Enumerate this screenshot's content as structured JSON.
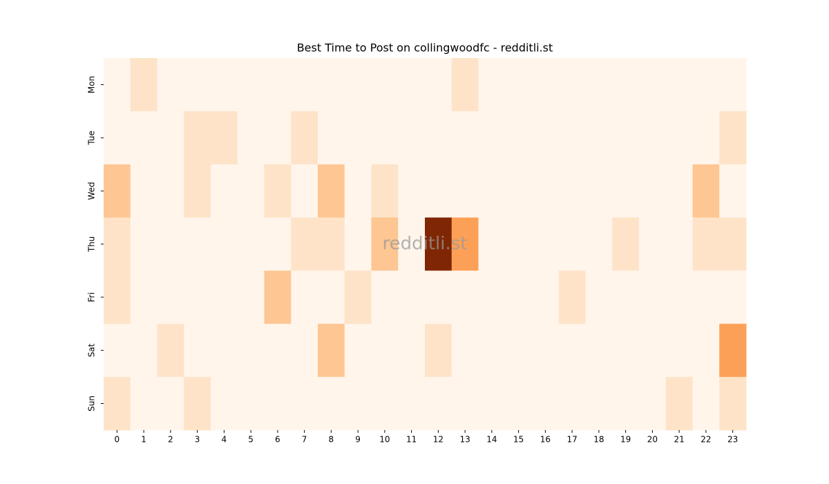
{
  "chart_data": {
    "type": "heatmap",
    "title": "Best Time to Post on collingwoodfc - redditli.st",
    "watermark": "redditli.st",
    "x": [
      0,
      1,
      2,
      3,
      4,
      5,
      6,
      7,
      8,
      9,
      10,
      11,
      12,
      13,
      14,
      15,
      16,
      17,
      18,
      19,
      20,
      21,
      22,
      23
    ],
    "categories": [
      "Mon",
      "Tue",
      "Wed",
      "Thu",
      "Fri",
      "Sat",
      "Sun"
    ],
    "values": [
      [
        0,
        1,
        0,
        0,
        0,
        0,
        0,
        0,
        0,
        0,
        0,
        0,
        0,
        1,
        0,
        0,
        0,
        0,
        0,
        0,
        0,
        0,
        0,
        0
      ],
      [
        0,
        0,
        0,
        1,
        1,
        0,
        0,
        1,
        0,
        0,
        0,
        0,
        0,
        0,
        0,
        0,
        0,
        0,
        0,
        0,
        0,
        0,
        0,
        1
      ],
      [
        2,
        0,
        0,
        1,
        0,
        0,
        1,
        0,
        2,
        0,
        1,
        0,
        0,
        0,
        0,
        0,
        0,
        0,
        0,
        0,
        0,
        0,
        2,
        0
      ],
      [
        1,
        0,
        0,
        0,
        0,
        0,
        0,
        1,
        1,
        0,
        2,
        0,
        7,
        3,
        0,
        0,
        0,
        0,
        0,
        1,
        0,
        0,
        1,
        1
      ],
      [
        1,
        0,
        0,
        0,
        0,
        0,
        2,
        0,
        0,
        1,
        0,
        0,
        0,
        0,
        0,
        0,
        0,
        1,
        0,
        0,
        0,
        0,
        0,
        0
      ],
      [
        0,
        0,
        1,
        0,
        0,
        0,
        0,
        0,
        2,
        0,
        0,
        0,
        1,
        0,
        0,
        0,
        0,
        0,
        0,
        0,
        0,
        0,
        0,
        3
      ],
      [
        1,
        0,
        0,
        1,
        0,
        0,
        0,
        0,
        0,
        0,
        0,
        0,
        0,
        0,
        0,
        0,
        0,
        0,
        0,
        0,
        0,
        1,
        0,
        1
      ]
    ],
    "colormap": [
      "#fff5eb",
      "#fee6ce",
      "#fdd0a2",
      "#fdae6b",
      "#fd8d3c",
      "#f16913",
      "#d94801",
      "#a63603",
      "#7f2704"
    ]
  }
}
